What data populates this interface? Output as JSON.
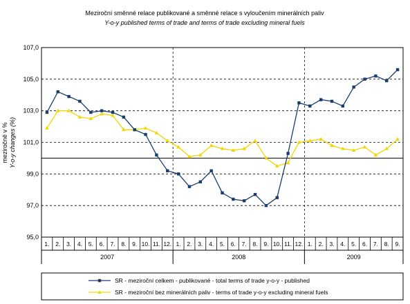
{
  "chart_data": {
    "type": "line",
    "title": "Meziroční směnné relace publikované a směnné relace s vyloučením minerálních paliv",
    "subtitle": "Y-o-y published terms of trade and terms of trade excluding mineral fuels",
    "ylabel": "meziročně v %",
    "ylabel_en": "Y-o-y changes (%)",
    "ylim": [
      95.0,
      107.0
    ],
    "yticks": [
      "95,0",
      "97,0",
      "99,0",
      "101,0",
      "103,0",
      "105,0",
      "107,0"
    ],
    "ytick_values": [
      95,
      97,
      99,
      101,
      103,
      105,
      107
    ],
    "reference_line": 100,
    "grid": "dashed horizontal and year separators",
    "month_labels": [
      "1.",
      "2.",
      "3.",
      "4.",
      "5.",
      "6.",
      "7.",
      "8.",
      "9.",
      "10.",
      "11.",
      "12.",
      "1.",
      "2.",
      "3.",
      "4.",
      "5.",
      "6.",
      "7.",
      "8.",
      "9.",
      "10.",
      "11.",
      "12.",
      "1.",
      "2.",
      "3.",
      "4.",
      "5.",
      "6.",
      "7.",
      "8.",
      "9."
    ],
    "years": [
      {
        "label": "2007",
        "start": 0,
        "end": 12
      },
      {
        "label": "2008",
        "start": 12,
        "end": 24
      },
      {
        "label": "2009",
        "start": 24,
        "end": 33
      }
    ],
    "legend_position": "bottom",
    "series": [
      {
        "name": "SR - meziroční celkem - publikované - total terms of trade y-o-y - published",
        "color": "#1a3d6b",
        "marker": "square",
        "values": [
          102.9,
          104.2,
          103.9,
          103.6,
          102.9,
          103.0,
          102.9,
          102.6,
          101.8,
          101.5,
          100.2,
          99.2,
          99.0,
          98.2,
          98.5,
          99.2,
          97.8,
          97.4,
          97.3,
          97.7,
          97.0,
          97.5,
          100.3,
          103.5,
          103.3,
          103.7,
          103.6,
          103.3,
          104.5,
          105.0,
          105.2,
          104.9,
          105.6
        ]
      },
      {
        "name": "SR - meziroční bez minerálních paliv - terms of trade y-o-y excluding mineral fuels",
        "color": "#f2d600",
        "marker": "triangle",
        "values": [
          101.9,
          103.0,
          103.0,
          102.6,
          102.5,
          102.8,
          102.7,
          101.8,
          101.8,
          101.9,
          101.6,
          101.1,
          100.7,
          100.1,
          100.2,
          100.8,
          100.6,
          100.5,
          100.6,
          101.1,
          100.0,
          99.5,
          99.7,
          101.0,
          101.1,
          101.2,
          100.8,
          100.6,
          100.5,
          100.7,
          100.2,
          100.6,
          101.2
        ]
      }
    ]
  }
}
